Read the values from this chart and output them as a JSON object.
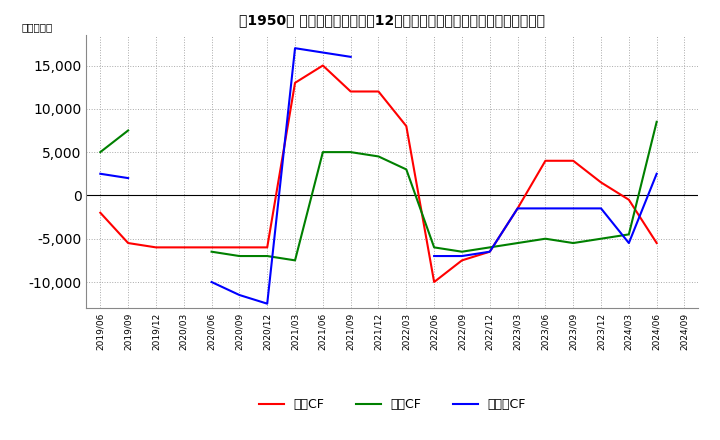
{
  "title": "　1950、 キャッシュフローの12か月移動合計の対前年同期増減額の推移",
  "title_bracket": "　1950、",
  "ylabel": "（百万円）",
  "ylim": [
    -13000,
    18500
  ],
  "yticks": [
    -10000,
    -5000,
    0,
    5000,
    10000,
    15000
  ],
  "legend_labels": [
    "営業CF",
    "投資CF",
    "フリーCF"
  ],
  "colors": [
    "#ff0000",
    "#008000",
    "#0000ff"
  ],
  "dates": [
    "2019/06",
    "2019/09",
    "2019/12",
    "2020/03",
    "2020/06",
    "2020/09",
    "2020/12",
    "2021/03",
    "2021/06",
    "2021/09",
    "2021/12",
    "2022/03",
    "2022/06",
    "2022/09",
    "2022/12",
    "2023/03",
    "2023/06",
    "2023/09",
    "2023/12",
    "2024/03",
    "2024/06",
    "2024/09"
  ],
  "operating_cf": [
    -2000,
    -5500,
    -6000,
    -6000,
    -6000,
    -6000,
    -6000,
    13000,
    15000,
    12000,
    12000,
    8000,
    -10000,
    -7500,
    -6500,
    -1500,
    4000,
    4000,
    1500,
    -500,
    -5500,
    null
  ],
  "investing_cf": [
    5000,
    7500,
    null,
    null,
    -6500,
    -7000,
    -7000,
    -7500,
    5000,
    5000,
    4500,
    3000,
    -6000,
    -6500,
    -6000,
    -5500,
    -5000,
    -5500,
    -5000,
    -4500,
    8500,
    null
  ],
  "free_cf": [
    2500,
    2000,
    null,
    null,
    -10000,
    -11500,
    -12500,
    17000,
    16500,
    16000,
    null,
    null,
    -7000,
    -7000,
    -6500,
    -1500,
    -1500,
    -1500,
    -1500,
    -5500,
    2500,
    null
  ]
}
